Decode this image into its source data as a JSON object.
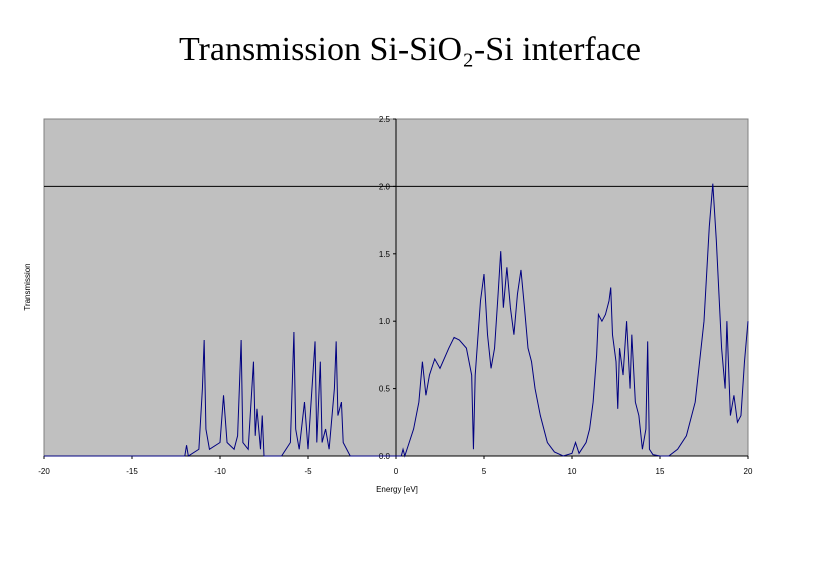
{
  "chart_data": {
    "type": "line",
    "title": "Transmission Si-SiO₂-Si interface",
    "xlabel": "Energy [eV]",
    "ylabel": "Transmission",
    "xlim": [
      -20,
      20
    ],
    "xticks": [
      -20,
      -15,
      -10,
      -5,
      0,
      5,
      10,
      15,
      20
    ],
    "ylim": [
      0,
      2.5
    ],
    "yticks": [
      {
        "value": 0,
        "label": "0.0"
      },
      0.5,
      {
        "value": 1,
        "label": "1.0"
      },
      1.5,
      {
        "value": 2,
        "label": "2.0"
      },
      2.5
    ],
    "grid_lines": [
      2
    ],
    "background": "#c0c0c0",
    "series": [
      {
        "name": "Transmission",
        "color": "#000080",
        "x": [
          -20,
          -12,
          -11.9,
          -11.8,
          -11.2,
          -11.0,
          -10.9,
          -10.8,
          -10.6,
          -10.0,
          -9.8,
          -9.6,
          -9.2,
          -9.0,
          -8.8,
          -8.7,
          -8.4,
          -8.1,
          -8.0,
          -7.9,
          -7.7,
          -7.6,
          -7.5,
          -7.0,
          -6.5,
          -6.0,
          -5.8,
          -5.7,
          -5.5,
          -5.2,
          -5.0,
          -4.8,
          -4.6,
          -4.5,
          -4.3,
          -4.2,
          -4.0,
          -3.8,
          -3.5,
          -3.4,
          -3.3,
          -3.1,
          -3.0,
          -2.8,
          -2.6,
          -1.0,
          0.3,
          0.4,
          0.5,
          1.0,
          1.3,
          1.5,
          1.7,
          1.9,
          2.2,
          2.5,
          3.0,
          3.3,
          3.6,
          4.0,
          4.3,
          4.4,
          4.5,
          4.8,
          5.0,
          5.2,
          5.4,
          5.6,
          5.8,
          5.95,
          6.1,
          6.3,
          6.5,
          6.7,
          6.9,
          7.1,
          7.3,
          7.5,
          7.7,
          7.9,
          8.2,
          8.6,
          9.0,
          9.5,
          10.0,
          10.2,
          10.4,
          10.8,
          11.0,
          11.2,
          11.4,
          11.5,
          11.7,
          11.9,
          12.1,
          12.2,
          12.3,
          12.5,
          12.6,
          12.7,
          12.9,
          13.1,
          13.3,
          13.4,
          13.6,
          13.8,
          14.0,
          14.2,
          14.3,
          14.4,
          14.6,
          15.0,
          15.5,
          16.0,
          16.5,
          17.0,
          17.5,
          17.8,
          18.0,
          18.2,
          18.5,
          18.7,
          18.8,
          19.0,
          19.2,
          19.4,
          19.6,
          19.8,
          20
        ],
        "values": [
          0,
          0,
          0.08,
          0,
          0.05,
          0.5,
          0.86,
          0.2,
          0.05,
          0.1,
          0.45,
          0.1,
          0.05,
          0.15,
          0.86,
          0.1,
          0.05,
          0.7,
          0.15,
          0.35,
          0.05,
          0.3,
          0,
          0,
          0,
          0.1,
          0.92,
          0.2,
          0.05,
          0.4,
          0.05,
          0.45,
          0.85,
          0.1,
          0.7,
          0.1,
          0.2,
          0.05,
          0.5,
          0.85,
          0.3,
          0.4,
          0.1,
          0.05,
          0,
          0,
          0,
          0.05,
          0,
          0.2,
          0.4,
          0.7,
          0.45,
          0.6,
          0.72,
          0.65,
          0.8,
          0.88,
          0.86,
          0.8,
          0.6,
          0.05,
          0.6,
          1.15,
          1.35,
          0.9,
          0.65,
          0.8,
          1.2,
          1.52,
          1.1,
          1.4,
          1.1,
          0.9,
          1.2,
          1.38,
          1.1,
          0.8,
          0.7,
          0.5,
          0.3,
          0.1,
          0.03,
          0,
          0.02,
          0.1,
          0.02,
          0.1,
          0.2,
          0.4,
          0.75,
          1.05,
          1.0,
          1.05,
          1.15,
          1.25,
          0.9,
          0.7,
          0.35,
          0.8,
          0.6,
          1.0,
          0.5,
          0.9,
          0.4,
          0.3,
          0.05,
          0.2,
          0.85,
          0.05,
          0.01,
          0,
          0,
          0.05,
          0.15,
          0.4,
          1.0,
          1.7,
          2.02,
          1.6,
          0.8,
          0.5,
          1.0,
          0.3,
          0.45,
          0.25,
          0.3,
          0.7,
          1.0
        ]
      }
    ]
  }
}
